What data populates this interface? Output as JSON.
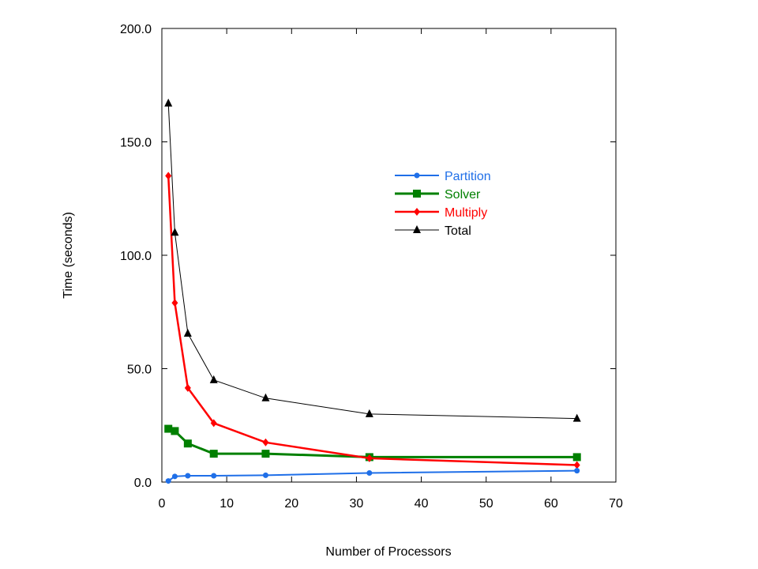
{
  "chart_data": {
    "type": "line",
    "title": "",
    "xlabel": "Number of Processors",
    "ylabel": "Time (seconds)",
    "xlim": [
      0,
      70
    ],
    "ylim": [
      0,
      200
    ],
    "xticks": [
      "0",
      "10",
      "20",
      "30",
      "40",
      "50",
      "60",
      "70"
    ],
    "yticks": [
      "0.0",
      "50.0",
      "100.0",
      "150.0",
      "200.0"
    ],
    "grid": false,
    "legend_position": "upper-right",
    "x": [
      1,
      2,
      4,
      8,
      16,
      32,
      64
    ],
    "series": [
      {
        "name": "Partition",
        "color": "#1f6fe8",
        "marker": "circle",
        "values": [
          0.5,
          2.5,
          2.8,
          2.8,
          3.0,
          4.0,
          5.0
        ]
      },
      {
        "name": "Solver",
        "color": "#008000",
        "marker": "square",
        "values": [
          23.5,
          22.5,
          17.0,
          12.5,
          12.5,
          11.0,
          11.0
        ]
      },
      {
        "name": "Multiply",
        "color": "#ff0000",
        "marker": "diamond",
        "values": [
          135.0,
          79.0,
          41.5,
          26.0,
          17.5,
          10.5,
          7.5
        ]
      },
      {
        "name": "Total",
        "color": "#000000",
        "marker": "triangle",
        "values": [
          167.0,
          110.0,
          65.5,
          45.0,
          37.0,
          30.0,
          28.0
        ]
      }
    ]
  }
}
